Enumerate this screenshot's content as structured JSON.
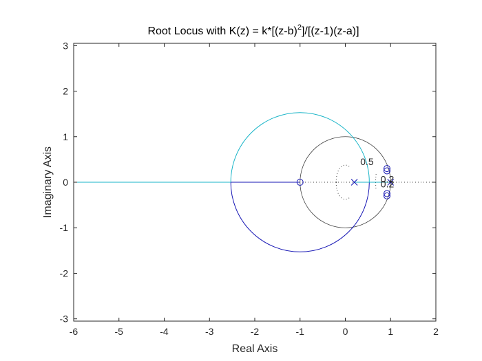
{
  "chart_data": {
    "type": "scatter",
    "title": {
      "prefix": "Root Locus with K(z) = k*[(z-b)",
      "superscript": "2",
      "suffix": "]/[(z-1)(z-a)]"
    },
    "xlabel": "Real Axis",
    "ylabel": "Imaginary Axis",
    "xlim": [
      -6,
      2
    ],
    "ylim": [
      -3.05,
      3.05
    ],
    "xticks": [
      -6,
      -5,
      -4,
      -3,
      -2,
      -1,
      0,
      1,
      2
    ],
    "xtick_labels": [
      "-6",
      "-5",
      "-4",
      "-3",
      "-2",
      "-1",
      "0",
      "1",
      "2"
    ],
    "yticks": [
      -3,
      -2,
      -1,
      0,
      1,
      2,
      3
    ],
    "ytick_labels": [
      "-3",
      "-2",
      "-1",
      "0",
      "1",
      "2",
      "3"
    ],
    "grid": false,
    "poles": [
      {
        "x": 0.2,
        "y": 0
      },
      {
        "x": 1.0,
        "y": 0
      }
    ],
    "zeros": [
      {
        "x": -1.0,
        "y": 0
      },
      {
        "x": 0.92,
        "y": 0.3
      },
      {
        "x": 0.92,
        "y": -0.3
      },
      {
        "x": 0.92,
        "y": 0.25
      },
      {
        "x": 0.92,
        "y": -0.25
      }
    ],
    "locus_branches": [
      {
        "color": "#1ab5c8",
        "shape": "circle_upper",
        "center": [
          -1.0,
          0
        ],
        "radius": 1.53
      },
      {
        "color": "#1414b4",
        "shape": "circle_lower",
        "center": [
          -1.0,
          0
        ],
        "radius": 1.53
      },
      {
        "color": "#1ab5c8",
        "shape": "segment",
        "from": [
          -6.0,
          0
        ],
        "to": [
          -2.53,
          0
        ]
      },
      {
        "color": "#1414b4",
        "shape": "segment",
        "from": [
          -2.53,
          0
        ],
        "to": [
          -1.0,
          0
        ]
      },
      {
        "color": "#1ab5c8",
        "shape": "segment",
        "from": [
          0.2,
          0
        ],
        "to": [
          1.0,
          0
        ]
      }
    ],
    "unit_circle": {
      "center": [
        0,
        0
      ],
      "radius": 1.0,
      "color": "#404040"
    },
    "damping_curve_labels": [
      {
        "text": "0.5",
        "x": 0.33,
        "y": 0.45
      },
      {
        "text": "0.2",
        "x": 0.78,
        "y": 0.07
      },
      {
        "text": "0.2",
        "x": 0.78,
        "y": -0.04
      }
    ],
    "colors": {
      "cyan_branch": "#1ab5c8",
      "blue_branch": "#1414b4",
      "unit_circle": "#404040",
      "axis": "#262626"
    }
  }
}
